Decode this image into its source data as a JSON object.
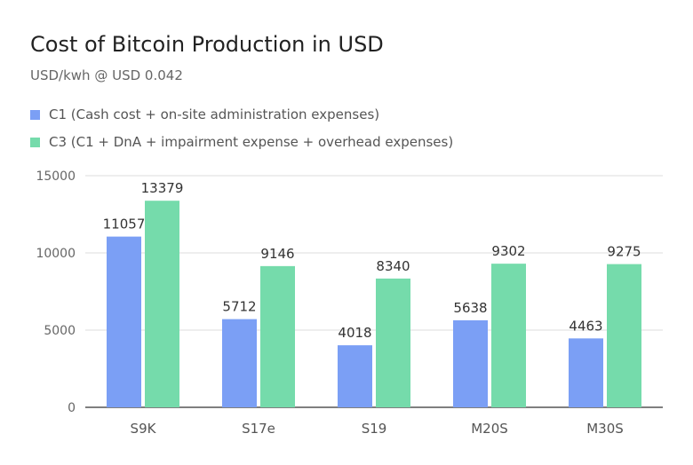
{
  "colors": {
    "c1": "#7b9ff5",
    "c3": "#75dbab",
    "grid": "#dddddd",
    "axis": "#555555"
  },
  "chart_data": {
    "type": "bar",
    "title": "Cost of Bitcoin Production in USD",
    "subtitle": "USD/kwh @ USD 0.042",
    "categories": [
      "S9K",
      "S17e",
      "S19",
      "M20S",
      "M30S"
    ],
    "series": [
      {
        "name": "C1 (Cash cost + on-site administration expenses)",
        "values": [
          11057,
          5712,
          4018,
          5638,
          4463
        ]
      },
      {
        "name": "C3  (C1 + DnA + impairment expense + overhead expenses)",
        "values": [
          13379,
          9146,
          8340,
          9302,
          9275
        ]
      }
    ],
    "ylim": [
      0,
      15000
    ],
    "yticks": [
      0,
      5000,
      10000,
      15000
    ],
    "grid": true,
    "legend_position": "top-left"
  }
}
